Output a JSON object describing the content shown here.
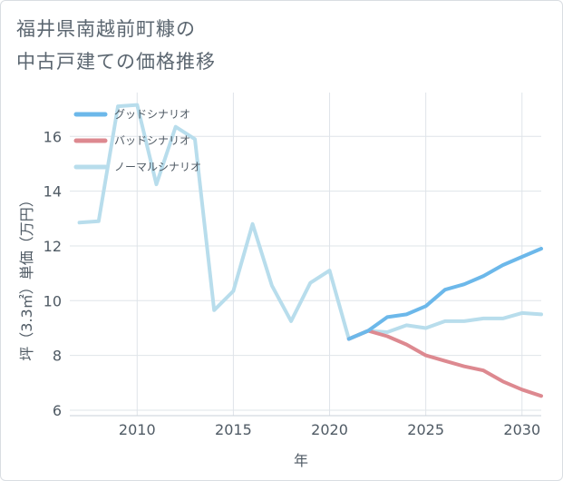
{
  "title": {
    "line1": "福井県南越前町糠の",
    "line2": "中古戸建ての価格推移"
  },
  "chart_data": {
    "type": "line",
    "xlabel": "年",
    "ylabel": "坪（3.3㎡）単価（万円）",
    "xlim": [
      2006.5,
      2031
    ],
    "ylim": [
      5.8,
      17.6
    ],
    "x_ticks": [
      2010,
      2015,
      2020,
      2025,
      2030
    ],
    "y_ticks": [
      6,
      8,
      10,
      12,
      14,
      16
    ],
    "grid": true,
    "legend_position": "top-left",
    "series": [
      {
        "name": "グッドシナリオ",
        "color": "#6cb8ea",
        "x": [
          2021,
          2022,
          2023,
          2024,
          2025,
          2026,
          2027,
          2028,
          2029,
          2030,
          2031
        ],
        "y": [
          8.6,
          8.9,
          9.4,
          9.5,
          9.8,
          10.4,
          10.6,
          10.9,
          11.3,
          11.6,
          11.9
        ]
      },
      {
        "name": "バッドシナリオ",
        "color": "#dd8990",
        "x": [
          2021,
          2022,
          2023,
          2024,
          2025,
          2026,
          2027,
          2028,
          2029,
          2030,
          2031
        ],
        "y": [
          8.6,
          8.9,
          8.7,
          8.4,
          8.0,
          7.8,
          7.6,
          7.45,
          7.05,
          6.75,
          6.52
        ]
      },
      {
        "name": "ノーマルシナリオ",
        "color": "#b8ddec",
        "x": [
          2007,
          2008,
          2009,
          2010,
          2011,
          2012,
          2013,
          2014,
          2015,
          2016,
          2017,
          2018,
          2019,
          2020,
          2021,
          2022,
          2023,
          2024,
          2025,
          2026,
          2027,
          2028,
          2029,
          2030,
          2031
        ],
        "y": [
          12.85,
          12.9,
          17.1,
          17.15,
          14.25,
          16.35,
          15.9,
          9.65,
          10.35,
          12.8,
          10.55,
          9.25,
          10.65,
          11.1,
          8.6,
          8.9,
          8.85,
          9.1,
          9.0,
          9.25,
          9.25,
          9.35,
          9.35,
          9.55,
          9.5
        ]
      }
    ]
  }
}
